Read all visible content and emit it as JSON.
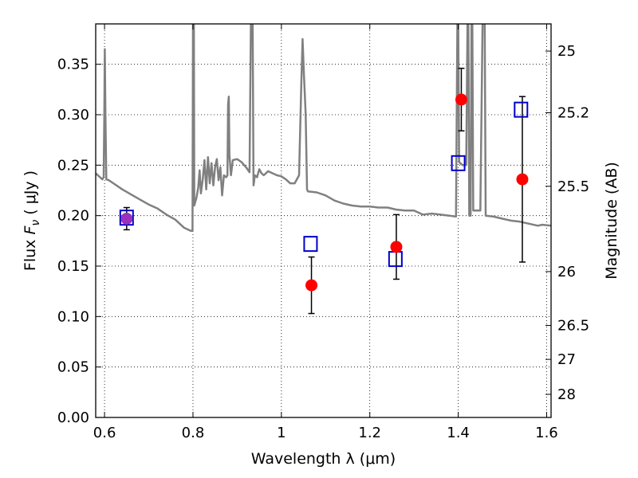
{
  "chart_data": {
    "type": "scatter",
    "title": "",
    "xlabel": "Wavelength  λ (μm)",
    "ylabel": "Flux  F_ν  ( μJy )",
    "ylabel_right": "Magnitude (AB)",
    "xlim": [
      0.58,
      1.61
    ],
    "ylim": [
      0.0,
      0.39
    ],
    "grid": true,
    "grid_style": "dotted",
    "x_ticks": [
      {
        "v": 0.6,
        "label": "0.6"
      },
      {
        "v": 0.8,
        "label": "0.8"
      },
      {
        "v": 1.0,
        "label": "1"
      },
      {
        "v": 1.2,
        "label": "1.2"
      },
      {
        "v": 1.4,
        "label": "1.4"
      },
      {
        "v": 1.6,
        "label": "1.6"
      }
    ],
    "y_ticks": [
      {
        "v": 0.0,
        "label": "0.00"
      },
      {
        "v": 0.05,
        "label": "0.05"
      },
      {
        "v": 0.1,
        "label": "0.10"
      },
      {
        "v": 0.15,
        "label": "0.15"
      },
      {
        "v": 0.2,
        "label": "0.20"
      },
      {
        "v": 0.25,
        "label": "0.25"
      },
      {
        "v": 0.3,
        "label": "0.30"
      },
      {
        "v": 0.35,
        "label": "0.35"
      }
    ],
    "right_ticks": [
      {
        "v": 25,
        "label": "25"
      },
      {
        "v": 25.2,
        "label": "25.2"
      },
      {
        "v": 25.5,
        "label": "25.5"
      },
      {
        "v": 26,
        "label": "26"
      },
      {
        "v": 26.5,
        "label": "26.5"
      },
      {
        "v": 27,
        "label": "27"
      },
      {
        "v": 28,
        "label": "28"
      }
    ],
    "colors": {
      "spectrum": "#808080",
      "observed": "#ff0000",
      "model": "#0000cc",
      "errorbar": "#000000",
      "overlap": "#9933bb"
    },
    "series": [
      {
        "kind": "line",
        "points": [
          [
            0.58,
            0.242
          ],
          [
            0.59,
            0.238
          ],
          [
            0.595,
            0.236
          ],
          [
            0.598,
            0.238
          ],
          [
            0.5995,
            0.3
          ],
          [
            0.6005,
            0.365
          ],
          [
            0.602,
            0.3
          ],
          [
            0.604,
            0.236
          ],
          [
            0.61,
            0.235
          ],
          [
            0.62,
            0.232
          ],
          [
            0.64,
            0.226
          ],
          [
            0.66,
            0.221
          ],
          [
            0.68,
            0.216
          ],
          [
            0.7,
            0.211
          ],
          [
            0.72,
            0.207
          ],
          [
            0.74,
            0.201
          ],
          [
            0.76,
            0.196
          ],
          [
            0.78,
            0.188
          ],
          [
            0.795,
            0.185
          ],
          [
            0.799,
            0.185
          ],
          [
            0.8,
            0.39
          ],
          [
            0.802,
            0.39
          ],
          [
            0.803,
            0.21
          ],
          [
            0.808,
            0.218
          ],
          [
            0.812,
            0.228
          ],
          [
            0.815,
            0.245
          ],
          [
            0.818,
            0.222
          ],
          [
            0.822,
            0.236
          ],
          [
            0.826,
            0.255
          ],
          [
            0.83,
            0.226
          ],
          [
            0.834,
            0.258
          ],
          [
            0.838,
            0.232
          ],
          [
            0.842,
            0.252
          ],
          [
            0.846,
            0.23
          ],
          [
            0.85,
            0.248
          ],
          [
            0.854,
            0.256
          ],
          [
            0.858,
            0.235
          ],
          [
            0.862,
            0.248
          ],
          [
            0.866,
            0.22
          ],
          [
            0.87,
            0.24
          ],
          [
            0.875,
            0.238
          ],
          [
            0.878,
            0.24
          ],
          [
            0.8795,
            0.31
          ],
          [
            0.881,
            0.318
          ],
          [
            0.8825,
            0.26
          ],
          [
            0.886,
            0.24
          ],
          [
            0.89,
            0.255
          ],
          [
            0.9,
            0.256
          ],
          [
            0.91,
            0.253
          ],
          [
            0.92,
            0.248
          ],
          [
            0.928,
            0.243
          ],
          [
            0.931,
            0.39
          ],
          [
            0.935,
            0.39
          ],
          [
            0.937,
            0.23
          ],
          [
            0.94,
            0.24
          ],
          [
            0.945,
            0.238
          ],
          [
            0.95,
            0.246
          ],
          [
            0.955,
            0.242
          ],
          [
            0.96,
            0.24
          ],
          [
            0.97,
            0.244
          ],
          [
            0.98,
            0.242
          ],
          [
            0.99,
            0.24
          ],
          [
            1.0,
            0.239
          ],
          [
            1.01,
            0.236
          ],
          [
            1.02,
            0.232
          ],
          [
            1.03,
            0.232
          ],
          [
            1.04,
            0.24
          ],
          [
            1.045,
            0.33
          ],
          [
            1.048,
            0.375
          ],
          [
            1.051,
            0.34
          ],
          [
            1.055,
            0.3
          ],
          [
            1.058,
            0.226
          ],
          [
            1.06,
            0.224
          ],
          [
            1.08,
            0.223
          ],
          [
            1.1,
            0.22
          ],
          [
            1.12,
            0.215
          ],
          [
            1.14,
            0.212
          ],
          [
            1.16,
            0.21
          ],
          [
            1.18,
            0.209
          ],
          [
            1.2,
            0.209
          ],
          [
            1.22,
            0.208
          ],
          [
            1.24,
            0.208
          ],
          [
            1.26,
            0.206
          ],
          [
            1.28,
            0.205
          ],
          [
            1.3,
            0.205
          ],
          [
            1.32,
            0.201
          ],
          [
            1.34,
            0.202
          ],
          [
            1.36,
            0.201
          ],
          [
            1.38,
            0.2
          ],
          [
            1.395,
            0.199
          ],
          [
            1.398,
            0.39
          ],
          [
            1.4,
            0.39
          ],
          [
            1.402,
            0.253
          ],
          [
            1.41,
            0.25
          ],
          [
            1.418,
            0.25
          ],
          [
            1.421,
            0.39
          ],
          [
            1.423,
            0.39
          ],
          [
            1.425,
            0.2
          ],
          [
            1.428,
            0.2
          ],
          [
            1.43,
            0.39
          ],
          [
            1.432,
            0.39
          ],
          [
            1.434,
            0.205
          ],
          [
            1.44,
            0.205
          ],
          [
            1.45,
            0.205
          ],
          [
            1.455,
            0.39
          ],
          [
            1.46,
            0.39
          ],
          [
            1.462,
            0.2
          ],
          [
            1.48,
            0.199
          ],
          [
            1.5,
            0.197
          ],
          [
            1.52,
            0.195
          ],
          [
            1.54,
            0.194
          ],
          [
            1.56,
            0.192
          ],
          [
            1.58,
            0.19
          ],
          [
            1.59,
            0.191
          ],
          [
            1.61,
            0.19
          ]
        ]
      },
      {
        "kind": "points-with-errors",
        "marker": "circle",
        "points": [
          {
            "x": 0.65,
            "y": 0.197,
            "err": 0.011
          },
          {
            "x": 1.068,
            "y": 0.131,
            "err": 0.028
          },
          {
            "x": 1.26,
            "y": 0.169,
            "err": 0.032
          },
          {
            "x": 1.407,
            "y": 0.315,
            "err": 0.031
          },
          {
            "x": 1.545,
            "y": 0.236,
            "err": 0.082
          }
        ]
      },
      {
        "kind": "points",
        "marker": "open-square",
        "points": [
          {
            "x": 0.65,
            "y": 0.198
          },
          {
            "x": 1.066,
            "y": 0.172
          },
          {
            "x": 1.258,
            "y": 0.157
          },
          {
            "x": 1.4,
            "y": 0.252
          },
          {
            "x": 1.542,
            "y": 0.305
          }
        ]
      }
    ]
  }
}
